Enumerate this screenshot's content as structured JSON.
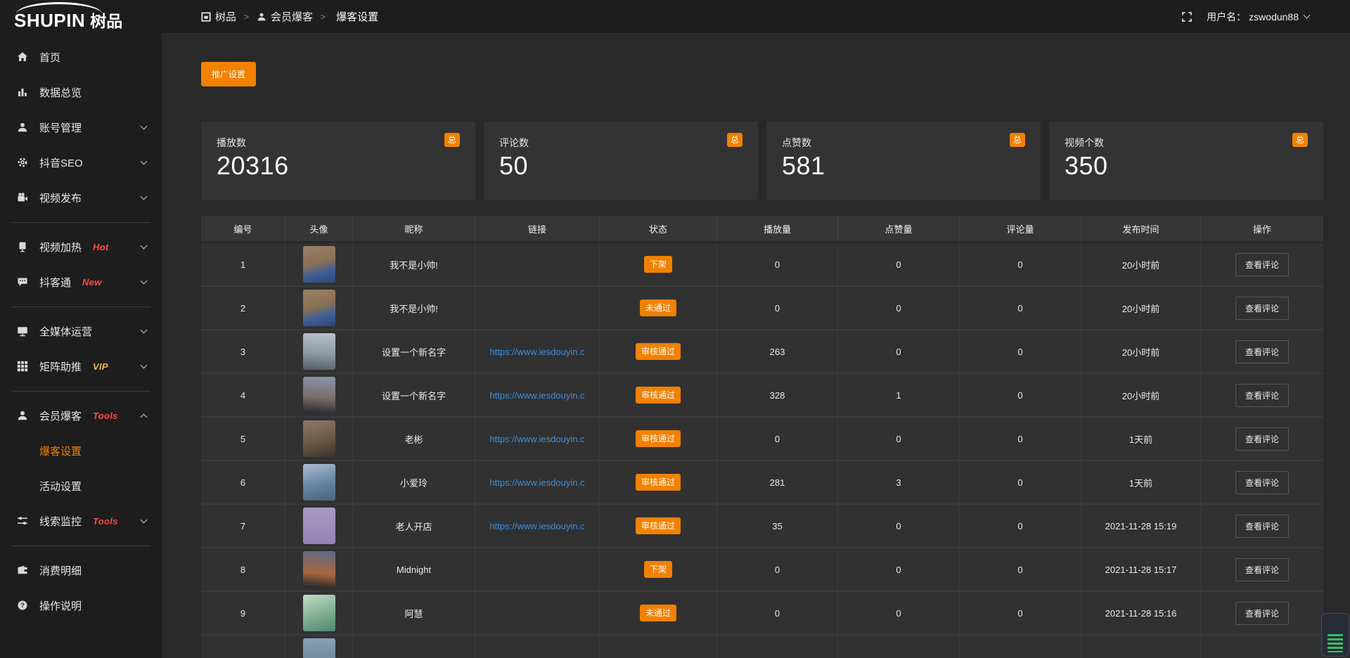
{
  "brand": {
    "logo_en": "SHUPIN",
    "logo_cn": "树品"
  },
  "topbar": {
    "breadcrumb": [
      {
        "label": "树品",
        "icon": "app-icon"
      },
      {
        "label": "会员爆客",
        "icon": "user-icon"
      },
      {
        "label": "爆客设置"
      }
    ],
    "username_label": "用户名：",
    "username": "zswodun88"
  },
  "sidebar": {
    "items": [
      {
        "key": "home",
        "label": "首页",
        "icon": "home-icon"
      },
      {
        "key": "data-overview",
        "label": "数据总览",
        "icon": "bar-chart-icon"
      },
      {
        "key": "account-management",
        "label": "账号管理",
        "icon": "user-icon",
        "chevron": "down"
      },
      {
        "key": "douyin-seo",
        "label": "抖音SEO",
        "icon": "gear-icon",
        "chevron": "down"
      },
      {
        "key": "video-publish",
        "label": "视频发布",
        "icon": "video-camera-icon",
        "chevron": "down",
        "divider_after": true
      },
      {
        "key": "video-heating",
        "label": "视频加热",
        "icon": "screen-icon",
        "tag": "Hot",
        "tag_color": "#ff4a4a",
        "chevron": "down"
      },
      {
        "key": "douketong",
        "label": "抖客通",
        "icon": "chat-icon",
        "tag": "New",
        "tag_color": "#ff4a4a",
        "chevron": "down",
        "divider_after": true
      },
      {
        "key": "media-operation",
        "label": "全媒体运营",
        "icon": "monitor-icon",
        "chevron": "down"
      },
      {
        "key": "matrix-boost",
        "label": "矩阵助推",
        "icon": "grid-icon",
        "tag": "VIP",
        "tag_color": "#e9b949",
        "chevron": "down",
        "divider_after": true
      },
      {
        "key": "member-baoke",
        "label": "会员爆客",
        "icon": "user-icon",
        "tag": "Tools",
        "tag_color": "#ff4a4a",
        "chevron": "up",
        "children": [
          {
            "key": "baoke-settings",
            "label": "爆客设置",
            "active": true
          },
          {
            "key": "activity-settings",
            "label": "活动设置"
          }
        ]
      },
      {
        "key": "clue-monitor",
        "label": "线索监控",
        "icon": "sliders-icon",
        "tag": "Tools",
        "tag_color": "#ff4a4a",
        "chevron": "down",
        "divider_after": true
      },
      {
        "key": "consumption-detail",
        "label": "消费明细",
        "icon": "wallet-icon"
      },
      {
        "key": "operation-guide",
        "label": "操作说明",
        "icon": "question-icon"
      }
    ]
  },
  "toolbar": {
    "promo_label": "推广设置"
  },
  "stats": [
    {
      "label": "播放数",
      "value": "20316",
      "badge": "总"
    },
    {
      "label": "评论数",
      "value": "50",
      "badge": "总"
    },
    {
      "label": "点赞数",
      "value": "581",
      "badge": "总"
    },
    {
      "label": "视频个数",
      "value": "350",
      "badge": "总"
    }
  ],
  "table": {
    "headers": [
      "编号",
      "头像",
      "昵称",
      "链接",
      "状态",
      "播放量",
      "点赞量",
      "评论量",
      "发布时间",
      "操作"
    ],
    "action_label": "查看评论",
    "rows": [
      {
        "num": "1",
        "nickname": "我不是小帅!",
        "link": "",
        "status": "下架",
        "plays": "0",
        "likes": "0",
        "comments": "0",
        "time": "20小时前",
        "avatar": "linear-gradient(165deg,#9a8268 0%,#8a7055 45%,#3c5e96 72%,#2c4878 100%)"
      },
      {
        "num": "2",
        "nickname": "我不是小帅!",
        "link": "",
        "status": "未通过",
        "plays": "0",
        "likes": "0",
        "comments": "0",
        "time": "20小时前",
        "avatar": "linear-gradient(165deg,#9a8268 0%,#8a7055 45%,#3c5e96 72%,#2c4878 100%)"
      },
      {
        "num": "3",
        "nickname": "设置一个新名字",
        "link": "https://www.iesdouyin.c",
        "status": "审核通过",
        "plays": "263",
        "likes": "0",
        "comments": "0",
        "time": "20小时前",
        "avatar": "linear-gradient(185deg,#b9c2ca 0%,#8e9aa4 55%,#565c63 100%)"
      },
      {
        "num": "4",
        "nickname": "设置一个新名字",
        "link": "https://www.iesdouyin.c",
        "status": "审核通过",
        "plays": "328",
        "likes": "1",
        "comments": "0",
        "time": "20小时前",
        "avatar": "linear-gradient(185deg,#8796ab 0%,#7a6f68 55%,#26272e 100%)"
      },
      {
        "num": "5",
        "nickname": "老彬",
        "link": "https://www.iesdouyin.c",
        "status": "审核通过",
        "plays": "0",
        "likes": "0",
        "comments": "0",
        "time": "1天前",
        "avatar": "linear-gradient(165deg,#8c7a66 0%,#6b5847 55%,#3a332c 100%)"
      },
      {
        "num": "6",
        "nickname": "小爱玲",
        "link": "https://www.iesdouyin.c",
        "status": "审核通过",
        "plays": "281",
        "likes": "3",
        "comments": "0",
        "time": "1天前",
        "avatar": "linear-gradient(165deg,#aebfd0 0%,#6c86a6 50%,#47637f 100%)"
      },
      {
        "num": "7",
        "nickname": "老人开店",
        "link": "https://www.iesdouyin.c",
        "status": "审核通过",
        "plays": "35",
        "likes": "0",
        "comments": "0",
        "time": "2021-11-28 15:19",
        "avatar": "linear-gradient(180deg,#a79bc6 0%,#9382b6 100%)"
      },
      {
        "num": "8",
        "nickname": "Midnight",
        "link": "",
        "status": "下架",
        "plays": "0",
        "likes": "0",
        "comments": "0",
        "time": "2021-11-28 15:17",
        "avatar": "linear-gradient(185deg,#5c6b86 0%,#a8663c 60%,#20242e 100%)"
      },
      {
        "num": "9",
        "nickname": "阿慧",
        "link": "",
        "status": "未通过",
        "plays": "0",
        "likes": "0",
        "comments": "0",
        "time": "2021-11-28 15:16",
        "avatar": "linear-gradient(160deg,#c2dcc6 0%,#86b297 50%,#4a8a70 100%)"
      },
      {
        "partial": true,
        "avatar": "linear-gradient(180deg,#8aa0b4 0%,#61798f 100%)"
      }
    ]
  },
  "colors": {
    "accent_orange": "#f28100",
    "link_blue": "#3d8edb",
    "tag_red": "#ff4a4a",
    "tag_gold": "#e9b949",
    "sidebar_bg": "#1d1d1d",
    "content_bg": "#292929",
    "card_bg": "#333333",
    "row_bg": "#313131",
    "header_bg": "#363636"
  }
}
